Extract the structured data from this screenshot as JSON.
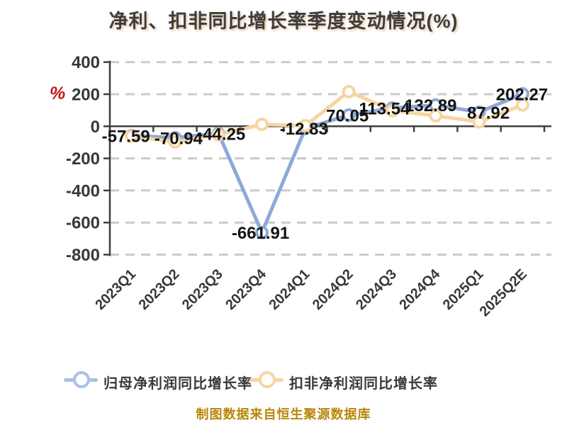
{
  "title": "净利、扣非同比增长率季度变动情况(%)",
  "y_axis_unit": "%",
  "footer": "制图数据来自恒生聚源数据库",
  "colors": {
    "title_text": "#3c3c3c",
    "axis_text": "#383838",
    "unit_red": "#c31414",
    "grid": "#cbcbcb",
    "axis_line": "#3f3f3f",
    "series_blue": "#8fa8da",
    "series_orange": "#f6d5a0",
    "footer_gold": "#b8860b",
    "data_label": "#141414"
  },
  "legend": {
    "items": [
      {
        "label": "归母净利润同比增长率",
        "color": "#a9c1e8"
      },
      {
        "label": "扣非净利润同比增长率",
        "color": "#f6d5a0"
      }
    ]
  },
  "chart_data": {
    "type": "line",
    "title": "净利、扣非同比增长率季度变动情况(%)",
    "xlabel": "",
    "ylabel": "%",
    "categories": [
      "2023Q1",
      "2023Q2",
      "2023Q3",
      "2023Q4",
      "2024Q1",
      "2024Q2",
      "2024Q3",
      "2024Q4",
      "2025Q1",
      "2025Q2E"
    ],
    "series": [
      {
        "name": "归母净利润同比增长率",
        "color": "#8fa8da",
        "values": [
          -57.59,
          -70.94,
          -44.25,
          -661.91,
          -12.83,
          70.05,
          113.54,
          132.89,
          87.92,
          202.27
        ],
        "labels": [
          "-57.59",
          "-70.94",
          "-44.25",
          "-661.91",
          "-12.83",
          "70.05",
          "113.54",
          "132.89",
          "87.92",
          "202.27"
        ],
        "labels_visible": true
      },
      {
        "name": "扣非净利润同比增长率",
        "color": "#f6d5a0",
        "values": [
          -62,
          -97,
          -53,
          12,
          4,
          216,
          98,
          66,
          27,
          133
        ],
        "values_estimated_from_pixels": true,
        "labels_visible": false
      }
    ],
    "yticks": [
      400,
      200,
      0,
      -200,
      -400,
      -600,
      -800
    ],
    "ylim": [
      -800,
      400
    ],
    "grid": "dashed-horizontal",
    "legend_position": "bottom"
  }
}
